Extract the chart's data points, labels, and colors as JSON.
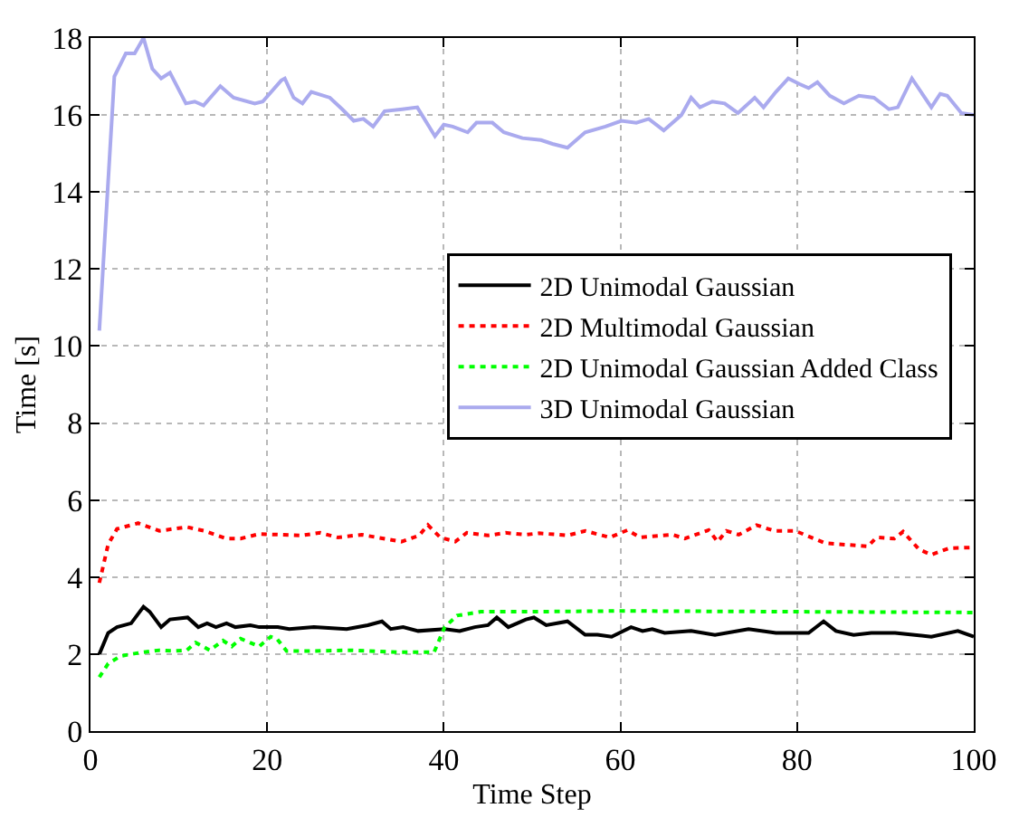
{
  "chart_data": {
    "type": "line",
    "xlabel": "Time Step",
    "ylabel": "Time [s]",
    "xlim": [
      0,
      100
    ],
    "xticks": [
      0,
      20,
      40,
      60,
      80,
      100
    ],
    "ylim": [
      0,
      18
    ],
    "yticks": [
      0,
      2,
      4,
      6,
      8,
      10,
      12,
      14,
      16,
      18
    ],
    "grid": true,
    "legend": "center right",
    "marker": "none",
    "series": [
      {
        "name": "2D Unimodal Gaussian",
        "color": "#000000",
        "line_style": "solid",
        "x": [
          1,
          2,
          3,
          4.6,
          6,
          6.7,
          8,
          9,
          11,
          12.2,
          13.2,
          14.2,
          15.4,
          16.4,
          18.1,
          19.1,
          21.2,
          22.5,
          25.3,
          29,
          31.4,
          33,
          34,
          35.4,
          37.1,
          40.1,
          41.8,
          43.5,
          45,
          46,
          47.3,
          49.3,
          50.2,
          51.6,
          54,
          56,
          57.4,
          59,
          61.2,
          62.5,
          63.6,
          65,
          68,
          70.7,
          74.5,
          77.6,
          81.3,
          83,
          84.4,
          86.4,
          88.4,
          91.1,
          95.2,
          98.2,
          100
        ],
        "values": [
          2.0,
          2.55,
          2.7,
          2.8,
          3.23,
          3.1,
          2.7,
          2.9,
          2.95,
          2.7,
          2.8,
          2.7,
          2.8,
          2.7,
          2.75,
          2.7,
          2.7,
          2.65,
          2.7,
          2.65,
          2.75,
          2.85,
          2.65,
          2.7,
          2.6,
          2.65,
          2.6,
          2.7,
          2.75,
          2.95,
          2.7,
          2.9,
          2.95,
          2.75,
          2.85,
          2.5,
          2.5,
          2.45,
          2.7,
          2.6,
          2.65,
          2.55,
          2.6,
          2.5,
          2.65,
          2.55,
          2.55,
          2.85,
          2.6,
          2.5,
          2.55,
          2.55,
          2.45,
          2.6,
          2.45
        ]
      },
      {
        "name": "2D Multimodal Gaussian",
        "color": "#ff0000",
        "line_style": "dotted",
        "x": [
          1,
          2,
          3,
          5.4,
          7.8,
          10.9,
          12.9,
          15.4,
          17,
          19.1,
          23.9,
          26,
          28,
          30.7,
          35.2,
          37.2,
          38.2,
          39.6,
          41.3,
          42.6,
          45,
          47,
          49.3,
          50.8,
          54,
          56,
          58.8,
          60.8,
          62.2,
          65.9,
          67.3,
          70,
          71,
          72,
          73.4,
          75.4,
          77.4,
          79.8,
          83.2,
          88,
          89,
          91,
          92,
          93.8,
          95.2,
          97.2,
          100
        ],
        "values": [
          3.85,
          4.85,
          5.25,
          5.4,
          5.2,
          5.3,
          5.2,
          5.0,
          5.0,
          5.12,
          5.08,
          5.15,
          5.03,
          5.1,
          4.92,
          5.08,
          5.35,
          5.03,
          4.92,
          5.15,
          5.08,
          5.15,
          5.1,
          5.14,
          5.08,
          5.2,
          5.03,
          5.22,
          5.03,
          5.1,
          5.0,
          5.22,
          4.92,
          5.2,
          5.1,
          5.35,
          5.2,
          5.2,
          4.88,
          4.8,
          5.03,
          5.0,
          5.18,
          4.72,
          4.58,
          4.75,
          4.77
        ]
      },
      {
        "name": "2D Unimodal Gaussian Added Class",
        "color": "#00ff00",
        "line_style": "dotted",
        "x": [
          1,
          2,
          3.4,
          5.4,
          7.8,
          9.5,
          10.9,
          11.9,
          13.5,
          15,
          16,
          17,
          19.1,
          20.4,
          21.1,
          22.2,
          25.3,
          29.3,
          34.8,
          38.9,
          40.1,
          41.5,
          44.2,
          49.6,
          60,
          100
        ],
        "values": [
          1.4,
          1.75,
          1.95,
          2.03,
          2.1,
          2.08,
          2.1,
          2.3,
          2.1,
          2.35,
          2.2,
          2.4,
          2.2,
          2.45,
          2.4,
          2.08,
          2.08,
          2.1,
          2.05,
          2.05,
          2.7,
          3.0,
          3.1,
          3.1,
          3.12,
          3.08
        ]
      },
      {
        "name": "3D Unimodal Gaussian",
        "color": "#aaaaee",
        "line_style": "solid",
        "x": [
          1,
          2.7,
          4,
          5,
          6,
          7,
          8,
          9,
          10.8,
          11.8,
          12.8,
          14.7,
          16.2,
          18.6,
          19.5,
          21.6,
          22,
          23,
          24,
          25,
          27.1,
          28.5,
          29.8,
          30.9,
          32,
          33.3,
          35.3,
          37,
          39,
          40,
          41,
          42.7,
          43.7,
          45.5,
          46.8,
          48.9,
          51,
          52.3,
          54,
          56,
          58.3,
          60.1,
          61.8,
          63.2,
          64.9,
          66.9,
          68,
          69,
          70.4,
          71.8,
          73.3,
          75.2,
          76.2,
          77.6,
          79,
          80.3,
          81.3,
          82.3,
          83.7,
          85.3,
          87,
          88.7,
          90.4,
          91.4,
          93,
          95.2,
          96.2,
          97,
          98.6,
          100
        ],
        "values": [
          10.4,
          17.0,
          17.6,
          17.6,
          18.0,
          17.2,
          16.95,
          17.1,
          16.3,
          16.35,
          16.25,
          16.75,
          16.45,
          16.3,
          16.35,
          16.9,
          16.95,
          16.45,
          16.3,
          16.6,
          16.45,
          16.15,
          15.85,
          15.9,
          15.7,
          16.1,
          16.15,
          16.2,
          15.45,
          15.75,
          15.7,
          15.55,
          15.8,
          15.8,
          15.55,
          15.4,
          15.35,
          15.25,
          15.15,
          15.55,
          15.7,
          15.85,
          15.8,
          15.9,
          15.6,
          16.0,
          16.45,
          16.2,
          16.35,
          16.3,
          16.05,
          16.45,
          16.2,
          16.6,
          16.95,
          16.8,
          16.7,
          16.85,
          16.5,
          16.3,
          16.5,
          16.45,
          16.15,
          16.2,
          16.95,
          16.2,
          16.55,
          16.5,
          16.05,
          16.0
        ]
      }
    ]
  }
}
